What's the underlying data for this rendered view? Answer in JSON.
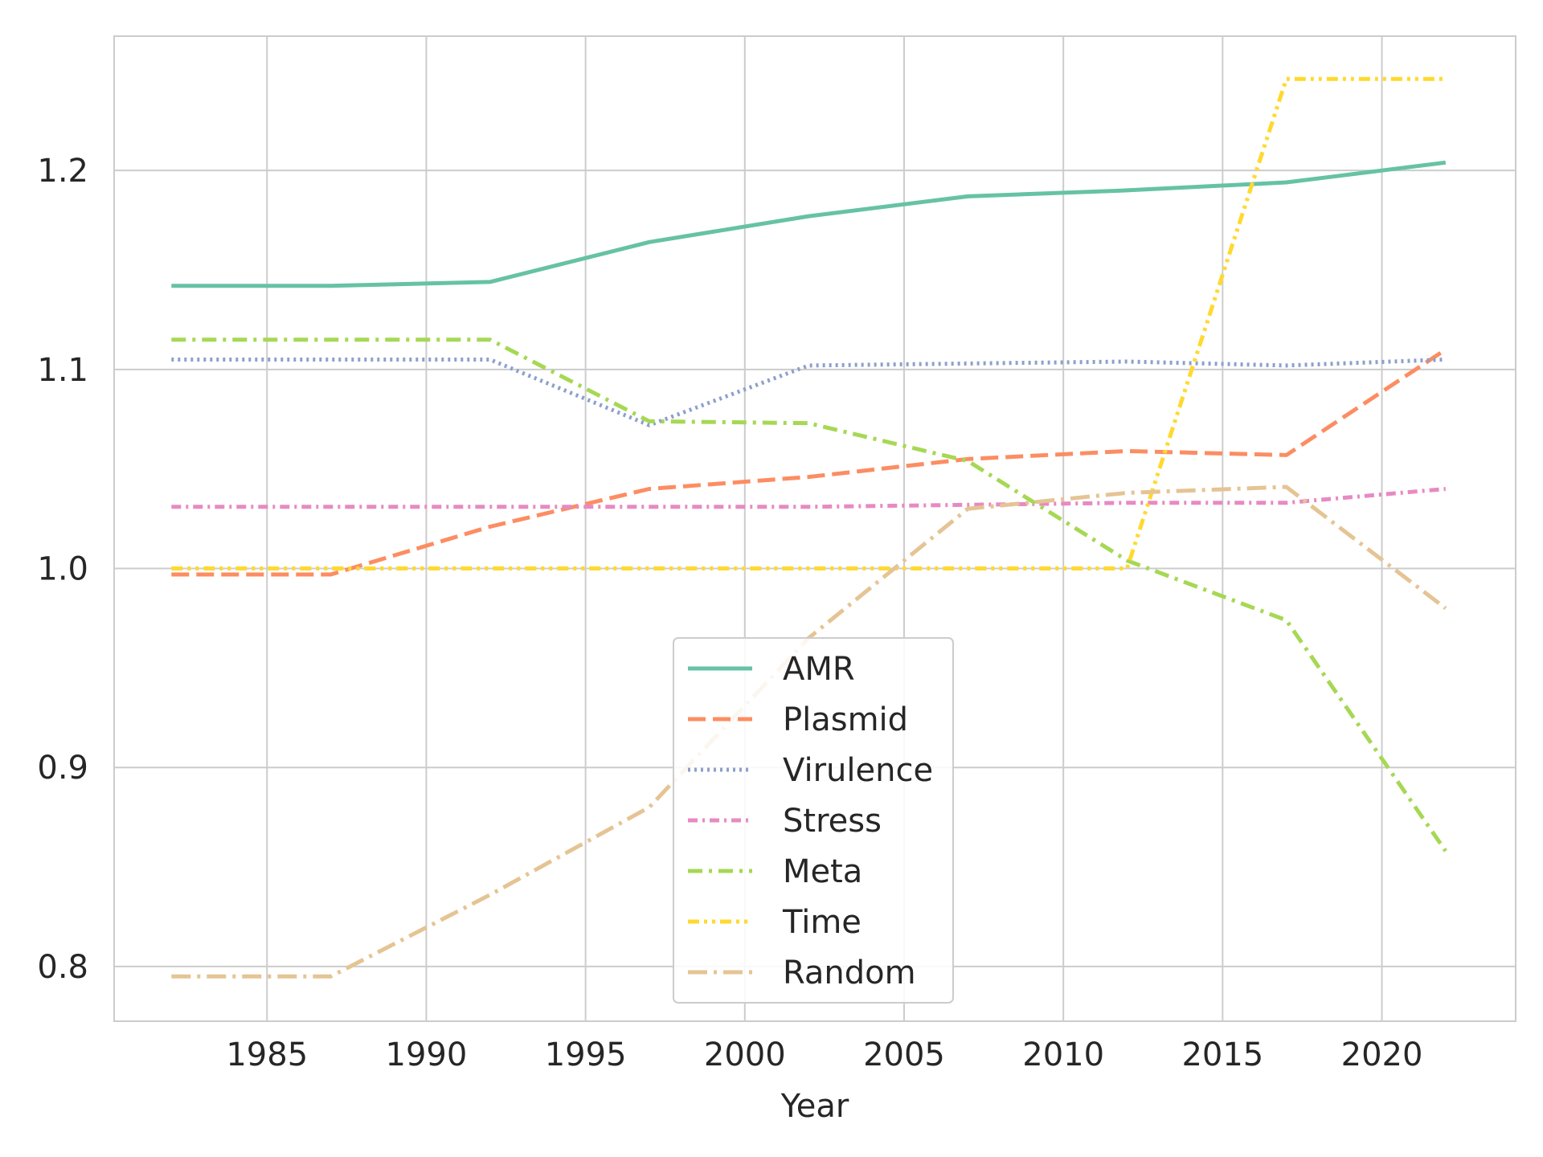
{
  "chart_data": {
    "type": "line",
    "title": "",
    "xlabel": "Year",
    "ylabel": "",
    "xlim": [
      1980.2,
      2024.2
    ],
    "ylim": [
      0.7725,
      1.2675
    ],
    "xticks": [
      1985,
      1990,
      1995,
      2000,
      2005,
      2010,
      2015,
      2020
    ],
    "xtick_labels": [
      "1985",
      "1990",
      "1995",
      "2000",
      "2005",
      "2010",
      "2015",
      "2020"
    ],
    "yticks": [
      0.8,
      0.9,
      1.0,
      1.1,
      1.2
    ],
    "ytick_labels": [
      "0.8",
      "0.9",
      "1.0",
      "1.1",
      "1.2"
    ],
    "grid": true,
    "legend_position": "lower-center",
    "series": [
      {
        "name": "AMR",
        "color": "#66c2a5",
        "dash": "solid",
        "x": [
          1982,
          1987,
          1992,
          1997,
          2002,
          2007,
          2012,
          2017,
          2022
        ],
        "y": [
          1.142,
          1.142,
          1.144,
          1.164,
          1.177,
          1.187,
          1.19,
          1.194,
          1.204
        ]
      },
      {
        "name": "Plasmid",
        "color": "#fc8d62",
        "dash": "dashed",
        "x": [
          1982,
          1987,
          1992,
          1997,
          2002,
          2007,
          2012,
          2017,
          2022
        ],
        "y": [
          0.997,
          0.997,
          1.021,
          1.04,
          1.046,
          1.055,
          1.059,
          1.057,
          1.11
        ]
      },
      {
        "name": "Virulence",
        "color": "#8da0cb",
        "dash": "dotted",
        "x": [
          1982,
          1987,
          1992,
          1997,
          2002,
          2007,
          2012,
          2017,
          2022
        ],
        "y": [
          1.105,
          1.105,
          1.105,
          1.072,
          1.102,
          1.103,
          1.104,
          1.102,
          1.105
        ]
      },
      {
        "name": "Stress",
        "color": "#e78ac3",
        "dash": "dashdot-dense",
        "x": [
          1982,
          1987,
          1992,
          1997,
          2002,
          2007,
          2012,
          2017,
          2022
        ],
        "y": [
          1.031,
          1.031,
          1.031,
          1.031,
          1.031,
          1.032,
          1.033,
          1.033,
          1.04
        ]
      },
      {
        "name": "Meta",
        "color": "#a6d854",
        "dash": "dashdot",
        "x": [
          1982,
          1987,
          1992,
          1997,
          2002,
          2007,
          2012,
          2017,
          2022
        ],
        "y": [
          1.115,
          1.115,
          1.115,
          1.074,
          1.073,
          1.054,
          1.004,
          0.974,
          0.858
        ]
      },
      {
        "name": "Time",
        "color": "#ffd92f",
        "dash": "dashdotdot",
        "x": [
          1982,
          1987,
          1992,
          1997,
          2002,
          2007,
          2012,
          2017,
          2022
        ],
        "y": [
          1.0,
          1.0,
          1.0,
          1.0,
          1.0,
          1.0,
          1.0,
          1.246,
          1.246
        ]
      },
      {
        "name": "Random",
        "color": "#e5c494",
        "dash": "longdashdot",
        "x": [
          1982,
          1987,
          1992,
          1997,
          2002,
          2007,
          2012,
          2017,
          2022
        ],
        "y": [
          0.795,
          0.795,
          0.836,
          0.88,
          0.965,
          1.03,
          1.038,
          1.041,
          0.98
        ]
      }
    ]
  }
}
